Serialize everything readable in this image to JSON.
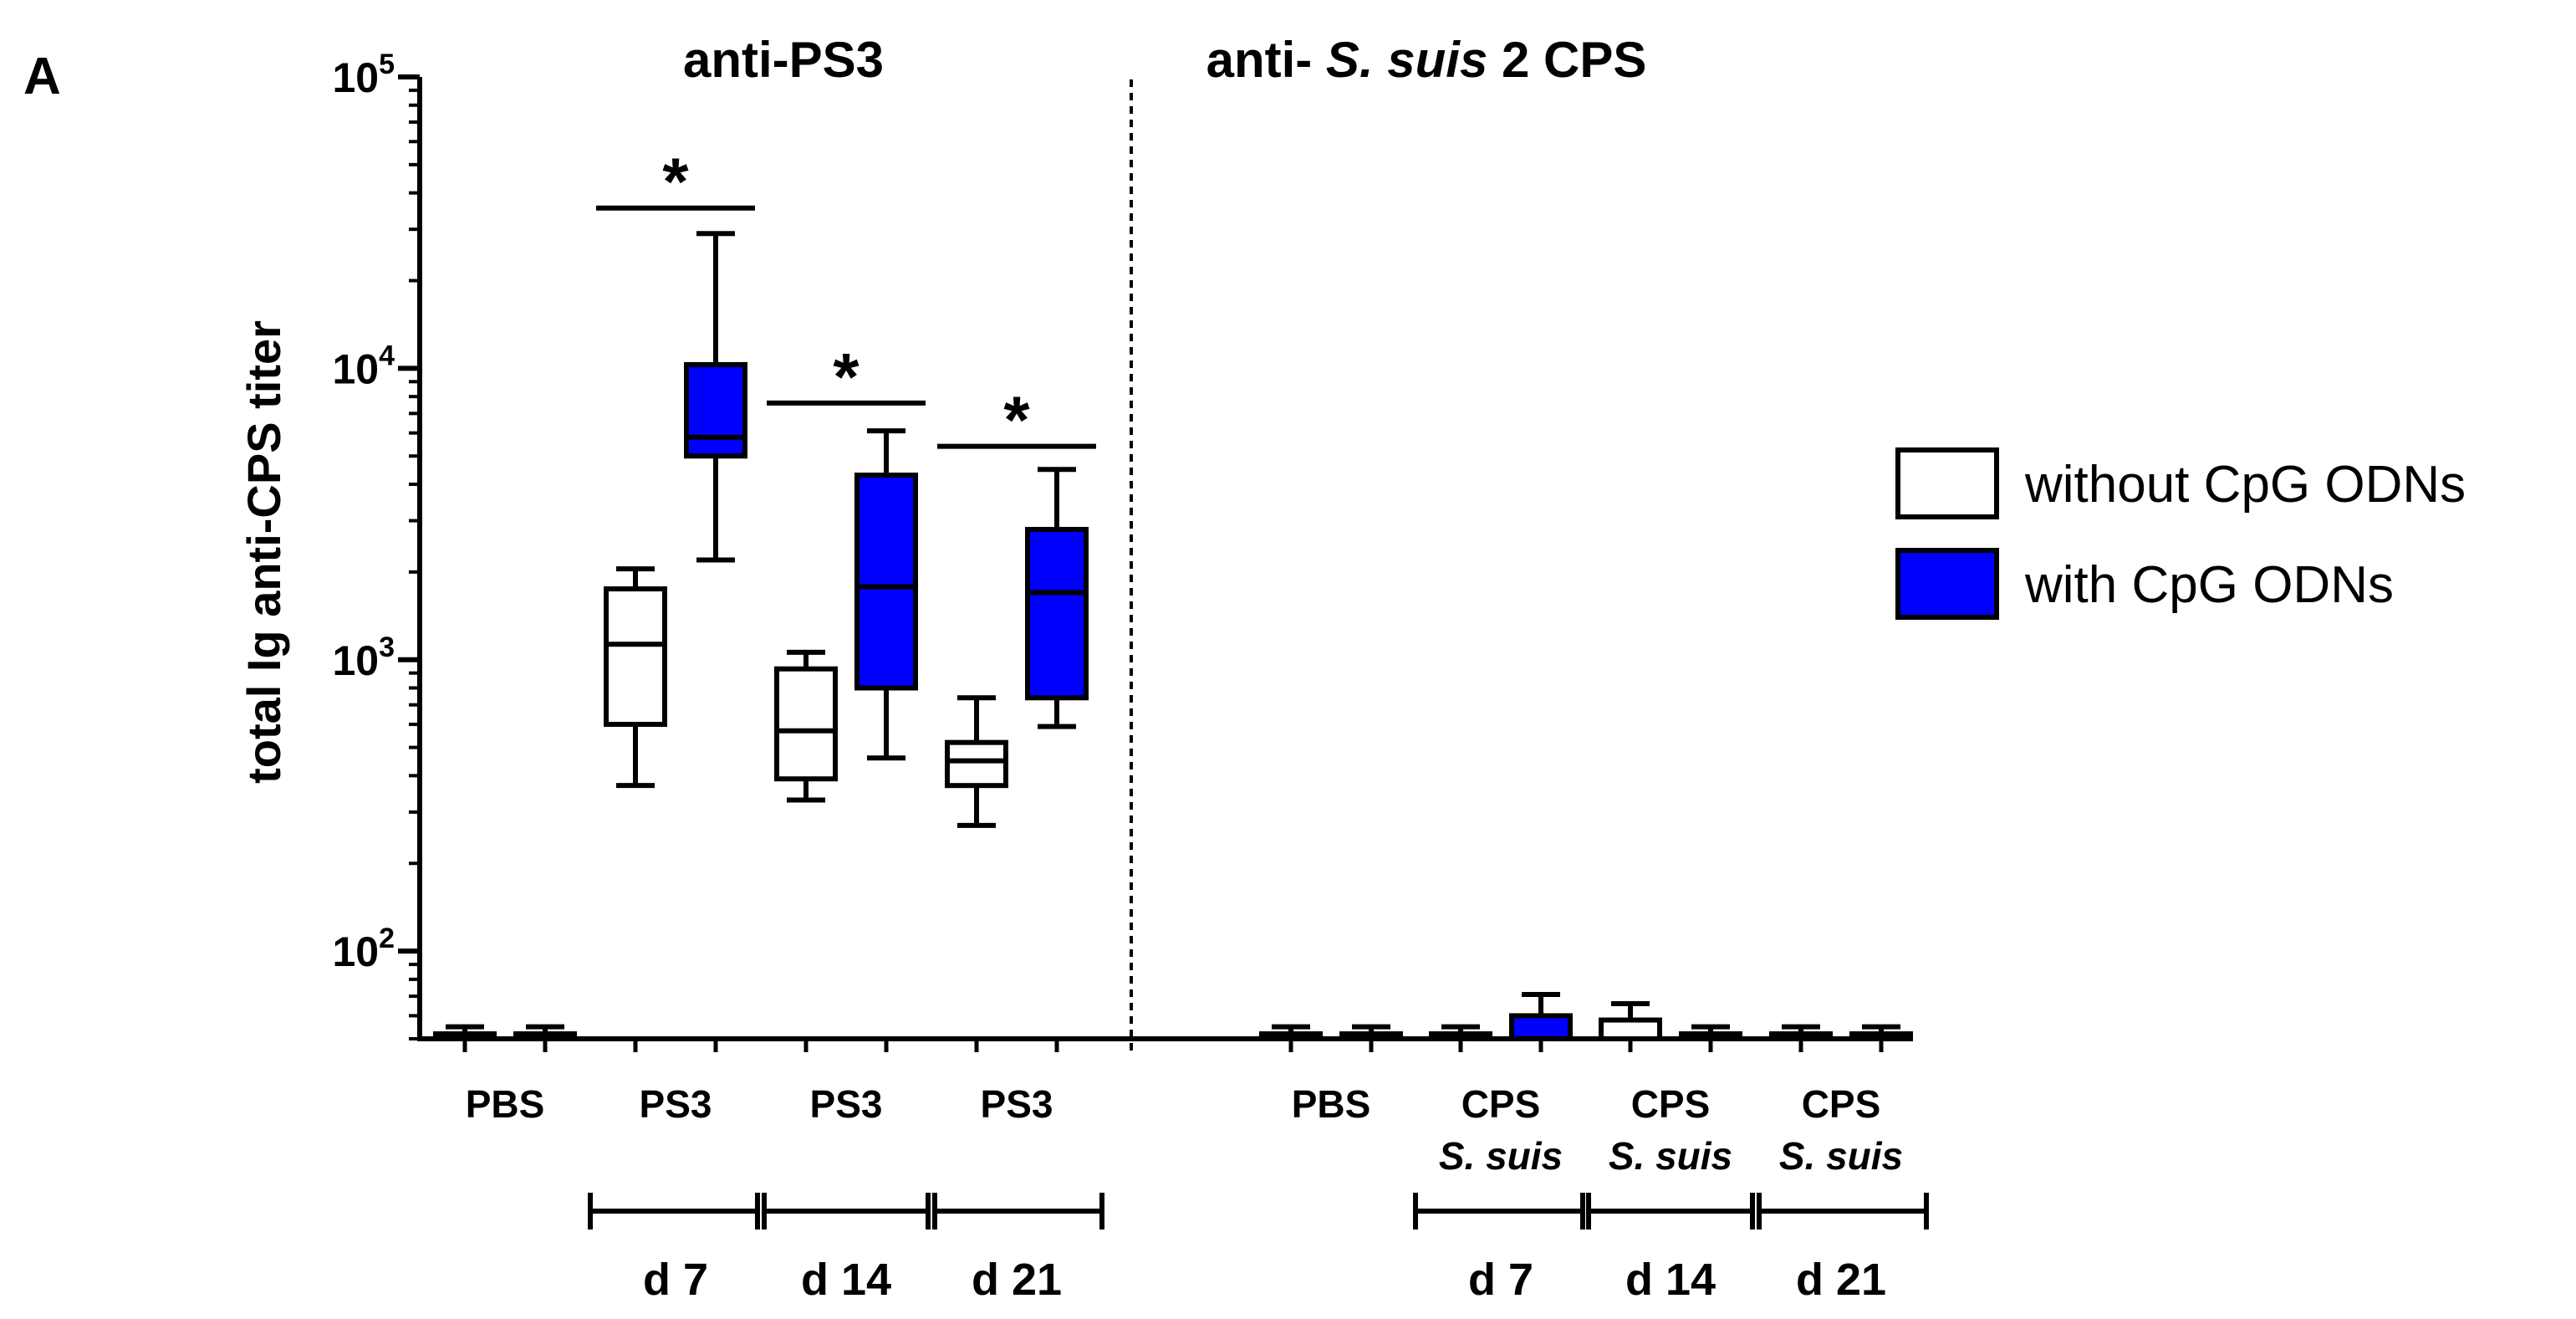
{
  "chart_data": {
    "type": "box",
    "panel_label": "A",
    "ylabel": "total Ig anti-CPS titer",
    "yscale": "log",
    "ylim": [
      50,
      100000
    ],
    "yticks": [
      {
        "value": 100,
        "base": "10",
        "exp": "2"
      },
      {
        "value": 1000,
        "base": "10",
        "exp": "3"
      },
      {
        "value": 10000,
        "base": "10",
        "exp": "4"
      },
      {
        "value": 100000,
        "base": "10",
        "exp": "5"
      }
    ],
    "sections": [
      {
        "title_parts": [
          "anti-PS3"
        ]
      },
      {
        "title_parts": [
          "anti- ",
          "S. suis",
          " 2 CPS"
        ]
      }
    ],
    "legend": [
      {
        "label": "without CpG ODNs",
        "color": "#ffffff"
      },
      {
        "label": "with CpG ODNs",
        "color": "#0000ff"
      }
    ],
    "colors": {
      "without": "#ffffff",
      "with": "#0000ff",
      "stroke": "#000000"
    },
    "groups": [
      {
        "section": 0,
        "label1": "PBS",
        "label2": "",
        "time": ""
      },
      {
        "section": 0,
        "label1": "PS3",
        "label2": "",
        "time": "d 7"
      },
      {
        "section": 0,
        "label1": "PS3",
        "label2": "",
        "time": "d 14"
      },
      {
        "section": 0,
        "label1": "PS3",
        "label2": "",
        "time": "d 21"
      },
      {
        "section": 1,
        "label1": "PBS",
        "label2": "",
        "time": ""
      },
      {
        "section": 1,
        "label1": "CPS",
        "label2": "S. suis",
        "time": "d 7"
      },
      {
        "section": 1,
        "label1": "CPS",
        "label2": "S. suis",
        "time": "d 14"
      },
      {
        "section": 1,
        "label1": "CPS",
        "label2": "S. suis",
        "time": "d 21"
      }
    ],
    "boxes": [
      {
        "group": 0,
        "series": "without",
        "min": 50,
        "q1": 50,
        "median": 50,
        "q3": 52,
        "max": 55
      },
      {
        "group": 0,
        "series": "with",
        "min": 50,
        "q1": 50,
        "median": 50,
        "q3": 52,
        "max": 55
      },
      {
        "group": 1,
        "series": "without",
        "min": 370,
        "q1": 600,
        "median": 1130,
        "q3": 1750,
        "max": 2050
      },
      {
        "group": 1,
        "series": "with",
        "min": 2200,
        "q1": 5000,
        "median": 5800,
        "q3": 10300,
        "max": 29000
      },
      {
        "group": 2,
        "series": "without",
        "min": 330,
        "q1": 390,
        "median": 570,
        "q3": 930,
        "max": 1060
      },
      {
        "group": 2,
        "series": "with",
        "min": 460,
        "q1": 800,
        "median": 1780,
        "q3": 4300,
        "max": 6100
      },
      {
        "group": 3,
        "series": "without",
        "min": 270,
        "q1": 370,
        "median": 450,
        "q3": 520,
        "max": 740
      },
      {
        "group": 3,
        "series": "with",
        "min": 590,
        "q1": 740,
        "median": 1700,
        "q3": 2800,
        "max": 4500
      },
      {
        "group": 4,
        "series": "without",
        "min": 50,
        "q1": 50,
        "median": 50,
        "q3": 52,
        "max": 55
      },
      {
        "group": 4,
        "series": "with",
        "min": 50,
        "q1": 50,
        "median": 50,
        "q3": 52,
        "max": 55
      },
      {
        "group": 5,
        "series": "without",
        "min": 50,
        "q1": 50,
        "median": 50,
        "q3": 52,
        "max": 55
      },
      {
        "group": 5,
        "series": "with",
        "min": 50,
        "q1": 50,
        "median": 50,
        "q3": 60,
        "max": 71
      },
      {
        "group": 6,
        "series": "without",
        "min": 50,
        "q1": 50,
        "median": 50,
        "q3": 58,
        "max": 66
      },
      {
        "group": 6,
        "series": "with",
        "min": 50,
        "q1": 50,
        "median": 50,
        "q3": 52,
        "max": 55
      },
      {
        "group": 7,
        "series": "without",
        "min": 50,
        "q1": 50,
        "median": 50,
        "q3": 52,
        "max": 55
      },
      {
        "group": 7,
        "series": "with",
        "min": 50,
        "q1": 50,
        "median": 50,
        "q3": 52,
        "max": 55
      }
    ],
    "significance": [
      {
        "group": 1,
        "label": "*",
        "level": 35500
      },
      {
        "group": 2,
        "label": "*",
        "level": 7600
      },
      {
        "group": 3,
        "label": "*",
        "level": 5400
      }
    ]
  }
}
